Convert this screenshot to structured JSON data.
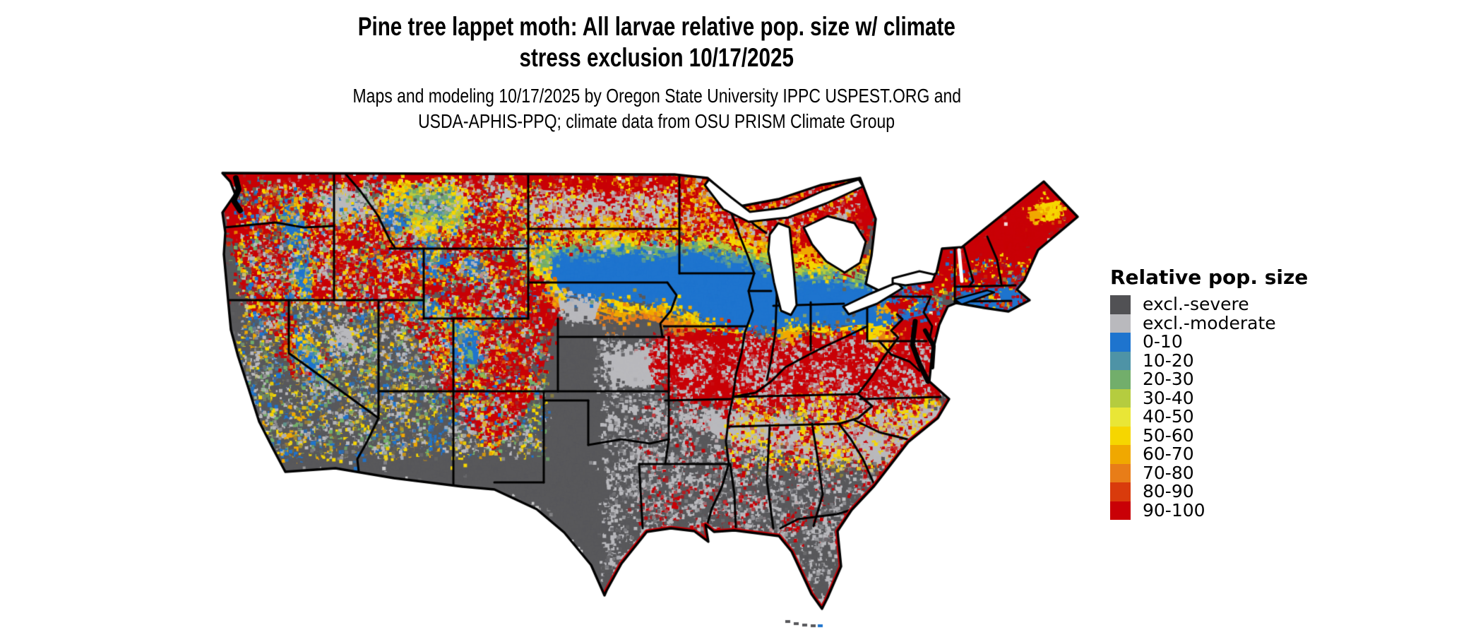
{
  "title": {
    "line1": "Pine tree lappet moth: All larvae relative pop. size w/ climate",
    "line2": "stress exclusion 10/17/2025"
  },
  "subtitle": {
    "line1": "Maps and modeling 10/17/2025 by Oregon State University IPPC USPEST.ORG and",
    "line2": "USDA-APHIS-PPQ; climate data from OSU PRISM Climate Group"
  },
  "legend": {
    "title": "Relative pop. size",
    "entries": [
      {
        "label": "excl.-severe",
        "color": "#515154"
      },
      {
        "label": "excl.-moderate",
        "color": "#B9B9BD"
      },
      {
        "label": "0-10",
        "color": "#1E74CE"
      },
      {
        "label": "10-20",
        "color": "#4E93A6"
      },
      {
        "label": "20-30",
        "color": "#72AE6B"
      },
      {
        "label": "30-40",
        "color": "#B5CC3F"
      },
      {
        "label": "40-50",
        "color": "#E9E636"
      },
      {
        "label": "50-60",
        "color": "#F6D600"
      },
      {
        "label": "60-70",
        "color": "#F0A800"
      },
      {
        "label": "70-80",
        "color": "#E87D18"
      },
      {
        "label": "80-90",
        "color": "#D93B0C"
      },
      {
        "label": "90-100",
        "color": "#C90006"
      }
    ]
  },
  "map": {
    "region": "Contiguous United States",
    "ocean_color": "#FFFFFF",
    "boundary_color": "#000000",
    "lake_color": "#FFFFFF"
  }
}
